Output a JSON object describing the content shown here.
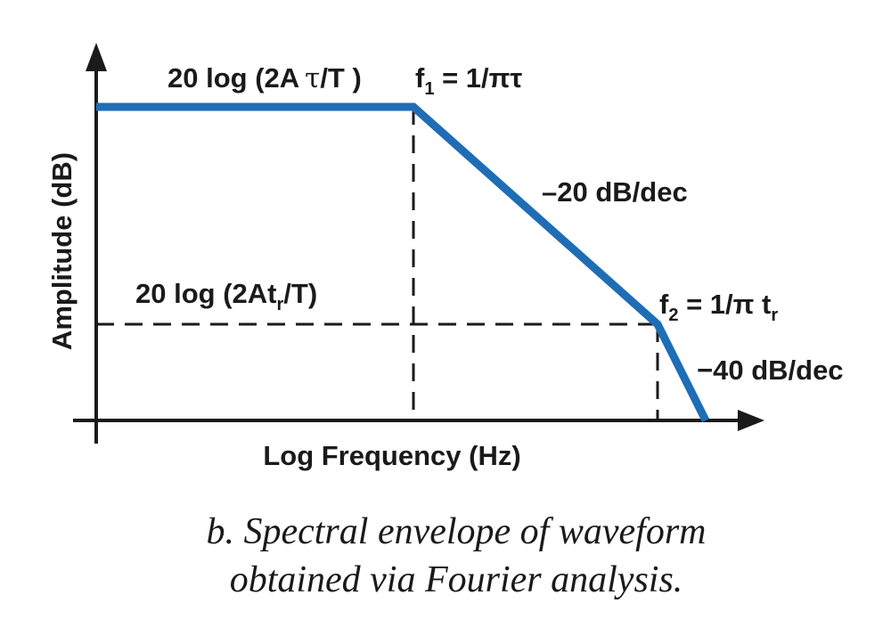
{
  "diagram": {
    "y_axis_label": "Amplitude (dB)",
    "x_axis_label": "Log Frequency (Hz)",
    "level_high_label": {
      "prefix": "20 log (2A",
      "symbol": "τ",
      "suffix": "/T )"
    },
    "level_low_label": {
      "prefix": "20 log (2At",
      "sub": "r",
      "suffix": "/T)"
    },
    "corner1_label": {
      "f": "f",
      "sub": "1",
      "expr": " = 1/πτ"
    },
    "corner2_label": {
      "f": "f",
      "sub": "2",
      "expr": " = 1/π t",
      "expr_sub": "r"
    },
    "slope1_label": "–20 dB/dec",
    "slope2_label": "−40 dB/dec",
    "envelope_color": "#1f6db5",
    "axis_color": "#1a1a1a"
  },
  "caption": {
    "line1": "b. Spectral envelope of waveform",
    "line2": "obtained via Fourier analysis."
  }
}
